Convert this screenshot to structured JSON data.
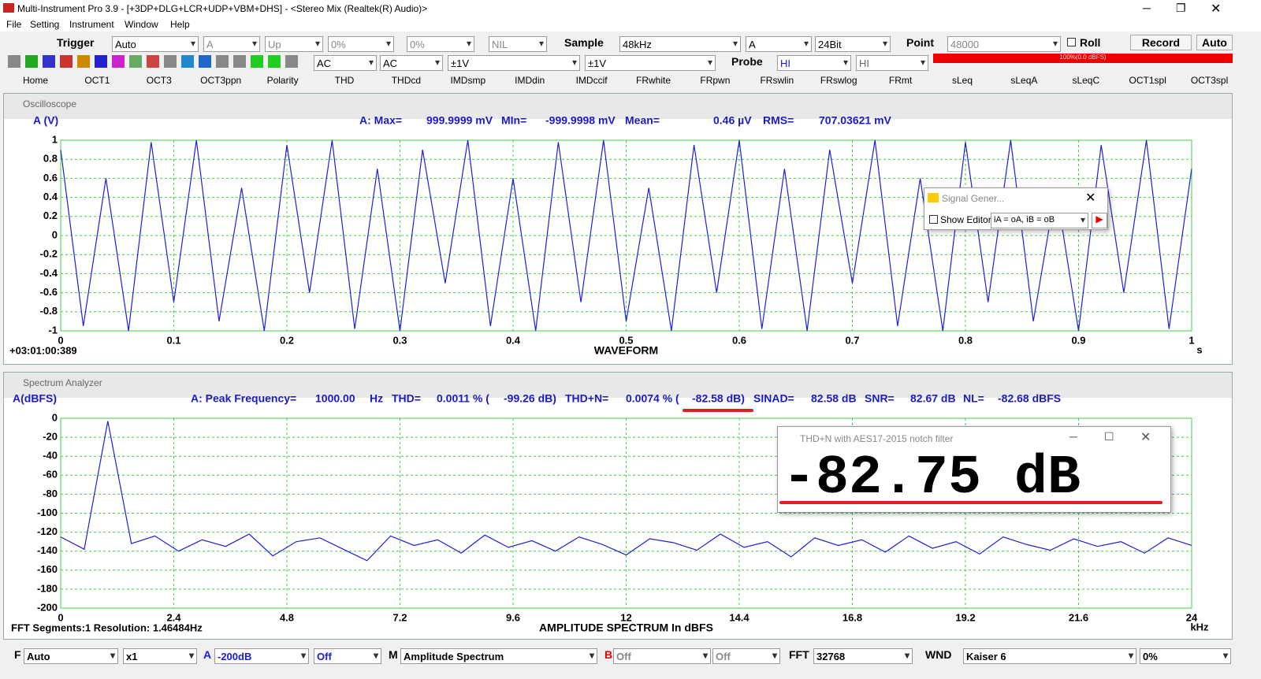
{
  "title_bar": {
    "title": "Multi-Instrument Pro 3.9  -  [+3DP+DLG+LCR+UDP+VBM+DHS]  -  <Stereo Mix (Realtek(R) Audio)>"
  },
  "menu": [
    "File",
    "Setting",
    "Instrument",
    "Window",
    "Help"
  ],
  "toolbar": {
    "trigger_label": "Trigger",
    "trigger_mode": "Auto",
    "trigger_channel": "A",
    "trigger_edge": "Up",
    "trigger_level": "0%",
    "trigger_delay": "0%",
    "nil": "NIL",
    "sample_label": "Sample",
    "sample_rate": "48kHz",
    "channel": "A",
    "bit_depth": "24Bit",
    "point_label": "Point",
    "points": "48000",
    "roll": "Roll",
    "record": "Record",
    "auto": "Auto",
    "coupling_a": "AC",
    "coupling_b": "AC",
    "range_a": "±1V",
    "range_b": "±1V",
    "probe_label": "Probe",
    "probe_a": "HI",
    "probe_b": "HI",
    "level_meter": "100%(0.0 dBFS)"
  },
  "tabs": [
    "Home",
    "OCT1",
    "OCT3",
    "OCT3ppn",
    "Polarity",
    "THD",
    "THDcd",
    "IMDsmp",
    "IMDdin",
    "IMDccif",
    "FRwhite",
    "FRpwn",
    "FRswlin",
    "FRswlog",
    "FRmt",
    "sLeq",
    "sLeqA",
    "sLeqC",
    "OCT1spl",
    "OCT3spl"
  ],
  "oscilloscope": {
    "window_title": "Oscilloscope",
    "stats": [
      "A: Max=",
      "999.9999 mV",
      "MIn=",
      "-999.9998 mV",
      "Mean=",
      "0.46  µV",
      "RMS=",
      "707.03621 mV"
    ],
    "timestamp": "+03:01:00:389"
  },
  "spectrum": {
    "window_title": "Spectrum Analyzer",
    "stats": [
      "A: Peak Frequency=",
      "1000.00",
      "Hz",
      "THD=",
      "0.0011 % (",
      "-99.26 dB)",
      "THD+N=",
      "0.0074 % (",
      "-82.58 dB)",
      "SINAD=",
      "82.58 dB",
      "SNR=",
      "82.67 dB",
      "NL=",
      "-82.68 dBFS"
    ],
    "footer": "FFT Segments:1   Resolution: 1.46484Hz"
  },
  "chart_data": [
    {
      "type": "line",
      "y_label": "A (V)",
      "x_label": "WAVEFORM",
      "x_unit": "s",
      "color": "#1f1fe0",
      "grid": true,
      "xlim": [
        0,
        1
      ],
      "xticks": [
        0,
        0.1,
        0.2,
        0.3,
        0.4,
        0.5,
        0.6,
        0.7,
        0.8,
        0.9,
        1
      ],
      "ylim": [
        -1,
        1
      ],
      "yticks": [
        1,
        0.8,
        0.6,
        0.4,
        0.2,
        0,
        -0.2,
        -0.4,
        -0.6,
        -0.8,
        -1
      ],
      "series": [
        {
          "name": "A",
          "color": "#1f1fe0",
          "x": [
            0,
            0.02,
            0.04,
            0.06,
            0.08,
            0.1,
            0.12,
            0.14,
            0.16,
            0.18,
            0.2,
            0.22,
            0.24,
            0.26,
            0.28,
            0.3,
            0.32,
            0.34,
            0.36,
            0.38,
            0.4,
            0.42,
            0.44,
            0.46,
            0.48,
            0.5,
            0.52,
            0.54,
            0.56,
            0.58,
            0.6,
            0.62,
            0.64,
            0.66,
            0.68,
            0.7,
            0.72,
            0.74,
            0.76,
            0.78,
            0.8,
            0.82,
            0.84,
            0.86,
            0.88,
            0.9,
            0.92,
            0.94,
            0.96,
            0.98,
            1
          ],
          "values": [
            0.9,
            -0.95,
            0.6,
            -1,
            0.98,
            -0.7,
            1,
            -0.9,
            0.5,
            -1,
            0.95,
            -0.6,
            1,
            -0.98,
            0.7,
            -1,
            0.9,
            -0.5,
            1,
            -0.95,
            0.6,
            -1,
            0.98,
            -0.7,
            1,
            -0.9,
            0.5,
            -1,
            0.95,
            -0.6,
            1,
            -0.98,
            0.7,
            -1,
            0.9,
            -0.5,
            1,
            -0.95,
            0.6,
            -1,
            0.98,
            -0.7,
            1,
            -0.9,
            0.5,
            -1,
            0.95,
            -0.6,
            1,
            -0.98,
            0.7
          ]
        }
      ]
    },
    {
      "type": "line",
      "y_label": "A(dBFS)",
      "x_label": "AMPLITUDE SPECTRUM In dBFS",
      "x_unit": "kHz",
      "color": "#1f1fe0",
      "grid": true,
      "xlim": [
        0,
        24
      ],
      "xticks": [
        0,
        2.4,
        4.8,
        7.2,
        9.6,
        12,
        14.4,
        16.8,
        19.2,
        21.6,
        24
      ],
      "ylim": [
        -200,
        0
      ],
      "yticks": [
        0,
        -20,
        -40,
        -60,
        -80,
        -100,
        -120,
        -140,
        -160,
        -180,
        -200
      ],
      "series": [
        {
          "name": "A",
          "color": "#1f1fe0",
          "x": [
            0,
            0.5,
            1,
            1.5,
            2,
            2.5,
            3,
            3.5,
            4,
            4.5,
            5,
            5.5,
            6,
            6.5,
            7,
            7.5,
            8,
            8.5,
            9,
            9.5,
            10,
            10.5,
            11,
            11.5,
            12,
            12.5,
            13,
            13.5,
            14,
            14.5,
            15,
            15.5,
            16,
            16.5,
            17,
            17.5,
            18,
            18.5,
            19,
            19.5,
            20,
            20.5,
            21,
            21.5,
            22,
            22.5,
            23,
            23.5,
            24
          ],
          "values": [
            -125,
            -138,
            -3,
            -132,
            -124,
            -140,
            -128,
            -135,
            -122,
            -145,
            -130,
            -126,
            -138,
            -150,
            -124,
            -134,
            -128,
            -142,
            -123,
            -136,
            -129,
            -140,
            -125,
            -133,
            -144,
            -127,
            -131,
            -139,
            -122,
            -136,
            -130,
            -146,
            -126,
            -134,
            -128,
            -141,
            -124,
            -137,
            -130,
            -143,
            -125,
            -133,
            -139,
            -127,
            -135,
            -130,
            -142,
            -126,
            -134
          ]
        }
      ]
    }
  ],
  "signal_generator": {
    "title": "Signal Gener...",
    "show_editor": "Show Editor",
    "mapping": "iA = oA, iB = oB"
  },
  "thdn_meter": {
    "title": "THD+N with AES17-2015 notch filter",
    "reading": "-82.75 dB"
  },
  "bottom_bar": {
    "f_label": "F",
    "f_mode": "Auto",
    "zoom": "x1",
    "a_label": "A",
    "a_range": "-200dB",
    "a_option": "Off",
    "m_label": "M",
    "m_mode": "Amplitude Spectrum",
    "b_label": "B",
    "b_option": "Off",
    "b_option2": "Off",
    "fft_label": "FFT",
    "fft_size": "32768",
    "wnd_label": "WND",
    "window": "Kaiser 6",
    "overlap": "0%"
  }
}
